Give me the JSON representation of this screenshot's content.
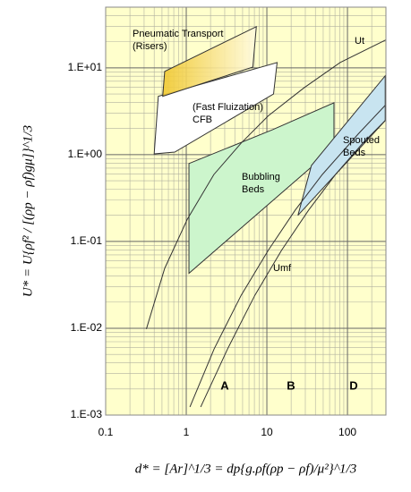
{
  "chart_data": {
    "type": "line",
    "xlabel": "d* = [Ar]^1/3 = dp{g.ρf(ρp − ρf)/μ²}^1/3",
    "ylabel": "U* = U{ρf² / [(ρp − ρf)gμ]}^1/3",
    "log_x": true,
    "log_y": true,
    "grid": true,
    "minor_grid": true,
    "background": "#ffffcc",
    "xlim": [
      0.1,
      300
    ],
    "ylim": [
      0.001,
      50
    ],
    "xticks": [
      0.1,
      1,
      10,
      100
    ],
    "yticks": [
      {
        "value": 0.001,
        "label": "1.E-03"
      },
      {
        "value": 0.01,
        "label": "1.E-02"
      },
      {
        "value": 0.1,
        "label": "1.E-01"
      },
      {
        "value": 1,
        "label": "1.E+00"
      },
      {
        "value": 10,
        "label": "1.E+01"
      }
    ],
    "series": [
      {
        "name": "Ut",
        "color": "#333333",
        "x": [
          0.32,
          0.54,
          1.03,
          2.2,
          4.8,
          10.4,
          29,
          81,
          300
        ],
        "y": [
          0.0098,
          0.049,
          0.18,
          0.59,
          1.36,
          2.8,
          5.9,
          11.5,
          21
        ]
      },
      {
        "name": "Umf",
        "color": "#333333",
        "x": [
          1.11,
          2.22,
          4.8,
          10.4,
          22.5,
          48.7,
          136,
          294
        ],
        "y": [
          0.00124,
          0.0058,
          0.024,
          0.079,
          0.23,
          0.59,
          1.73,
          3.7
        ]
      },
      {
        "color": "#333333",
        "x": [
          1.51,
          3.26,
          7.1,
          15.2,
          33,
          71,
          155,
          294
        ],
        "y": [
          0.00124,
          0.0058,
          0.024,
          0.079,
          0.23,
          0.59,
          1.36,
          2.47
        ]
      }
    ],
    "regions": [
      {
        "label": [
          "(Fast Fluization)",
          "CFB"
        ],
        "color": "#ffffff",
        "x": [
          0.4,
          0.45,
          13.4,
          12.1,
          0.72
        ],
        "y": [
          1.02,
          4.7,
          11.5,
          5.0,
          1.07
        ]
      },
      {
        "label": [
          "Pneumatic Transport",
          "(Risers)"
        ],
        "color": "#f0c830",
        "x": [
          0.51,
          0.54,
          7.4,
          6.7
        ],
        "y": [
          4.7,
          9.1,
          29.8,
          10.2
        ]
      },
      {
        "label": [
          "Bubbling",
          "Beds"
        ],
        "color": "#ccf5cc",
        "x": [
          1.08,
          11.8,
          68,
          68,
          1.08
        ],
        "y": [
          0.79,
          1.94,
          3.96,
          1.21,
          0.043
        ]
      },
      {
        "label": [
          "Spouted",
          "Beds"
        ],
        "color": "#c8e4f0",
        "x": [
          24.3,
          35.7,
          294,
          294
        ],
        "y": [
          0.2,
          0.75,
          8.1,
          2.47
        ]
      }
    ],
    "group_labels": [
      "A",
      "B",
      "D"
    ]
  }
}
